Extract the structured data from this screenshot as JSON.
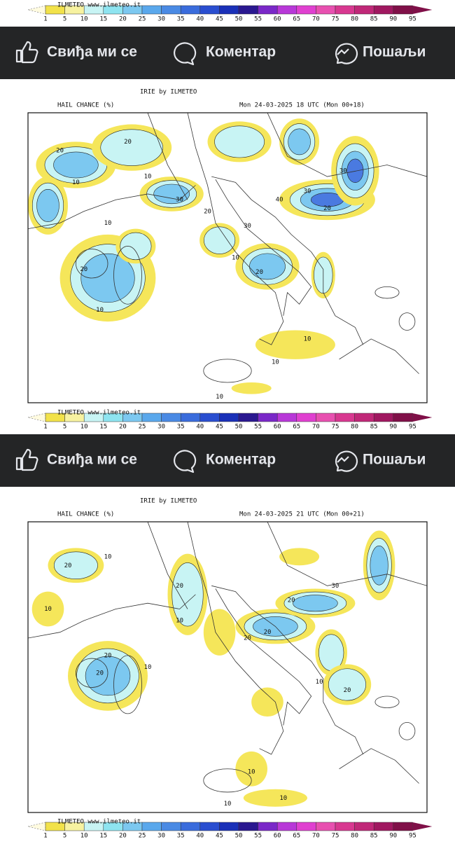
{
  "colorbar_colors": [
    "#f2e24a",
    "#f7f2a0",
    "#c8f4f4",
    "#8ee4f0",
    "#7cc8f0",
    "#5aa8ec",
    "#4a8ae4",
    "#3a6cdc",
    "#2a4ed0",
    "#1a30b8",
    "#2a1890",
    "#7a28c8",
    "#b838d8",
    "#e040d0",
    "#e850b0",
    "#d83890",
    "#c02878",
    "#a01860",
    "#801048"
  ],
  "colorbars": [
    {
      "credit": "ILMETEO www.ilmeteo.it",
      "labels": [
        1,
        5,
        10,
        15,
        20,
        25,
        30,
        35,
        40,
        45,
        50,
        55,
        60,
        65,
        70,
        75,
        80,
        85,
        90,
        95
      ]
    },
    {
      "credit": "ILMETEO www.ilmeteo.it",
      "labels": [
        1,
        5,
        10,
        15,
        20,
        25,
        30,
        35,
        40,
        45,
        50,
        55,
        60,
        65,
        70,
        75,
        80,
        85,
        90,
        95
      ]
    },
    {
      "credit": "ILMETEO www.ilmeteo.it",
      "labels": [
        1,
        5,
        10,
        15,
        20,
        25,
        30,
        35,
        40,
        45,
        50,
        55,
        60,
        65,
        70,
        75,
        80,
        85,
        90,
        95
      ]
    }
  ],
  "action_bars": [
    {
      "like": "Свиђа ми се",
      "comment": "Коментар",
      "share": "Пошаљи"
    },
    {
      "like": "Свиђа ми се",
      "comment": "Коментар",
      "share": "Пошаљи"
    }
  ],
  "maps": [
    {
      "source": "IRIE by ILMETEO",
      "variable": "HAIL CHANCE (%)",
      "time": "Mon 24-03-2025 18 UTC (Mon 00+18)",
      "contour_labels": [
        "20",
        "10",
        "20",
        "10",
        "10",
        "30",
        "20",
        "30",
        "40",
        "30",
        "20",
        "10",
        "30",
        "20",
        "20",
        "10",
        "10",
        "10",
        "10"
      ]
    },
    {
      "source": "IRIE by ILMETEO",
      "variable": "HAIL CHANCE (%)",
      "time": "Mon 24-03-2025 21 UTC (Mon 00+21)",
      "contour_labels": [
        "20",
        "10",
        "10",
        "20",
        "10",
        "20",
        "30",
        "20",
        "20",
        "20",
        "20",
        "10",
        "20",
        "10",
        "10",
        "10",
        "10"
      ]
    }
  ]
}
